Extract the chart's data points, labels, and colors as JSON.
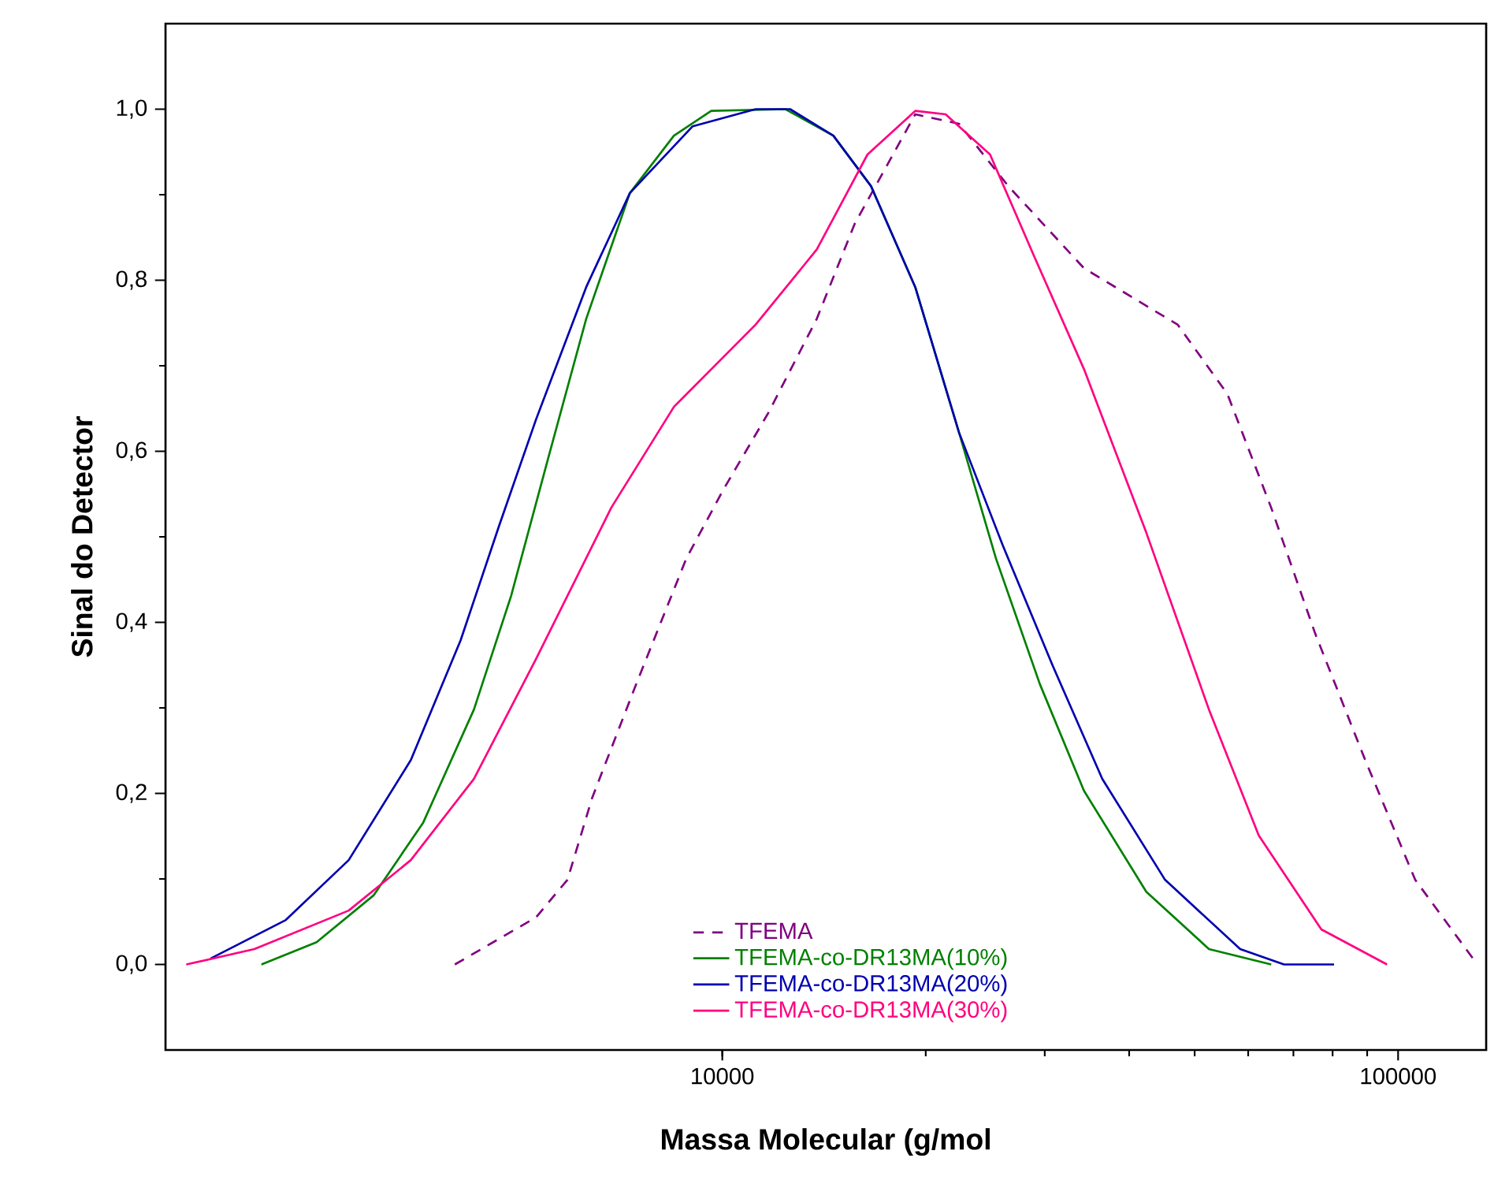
{
  "chart_data": {
    "type": "line",
    "xlabel": "Massa Molecular (g/mol",
    "ylabel": "Sinal do Detector",
    "log": "x",
    "xlim": [
      1500,
      135000
    ],
    "ylim": [
      -0.1,
      1.1
    ],
    "xticks": [
      10000,
      100000
    ],
    "yticks": [
      {
        "value": 0,
        "label": "0,0"
      },
      {
        "value": 0.2,
        "label": "0,2"
      },
      {
        "value": 0.4,
        "label": "0,4"
      },
      {
        "value": 0.6,
        "label": "0,6"
      },
      {
        "value": 0.8,
        "label": "0,8"
      },
      {
        "value": 1.0,
        "label": "1,0"
      }
    ],
    "legend": "bottom",
    "grid": false,
    "marker": "none",
    "series": [
      {
        "name": "TFEMA",
        "color": "#800080",
        "line_style": "dashed",
        "x": [
          4020,
          5300,
          5900,
          6420,
          7460,
          8850,
          10050,
          11700,
          13800,
          15700,
          19300,
          22400,
          26500,
          34300,
          47200,
          55900,
          64900,
          75400,
          89400,
          106000,
          131000
        ],
        "values": [
          0,
          0.055,
          0.099,
          0.195,
          0.328,
          0.475,
          0.556,
          0.645,
          0.755,
          0.866,
          0.994,
          0.983,
          0.91,
          0.814,
          0.748,
          0.667,
          0.534,
          0.387,
          0.239,
          0.099,
          0
        ]
      },
      {
        "name": "TFEMA-co-DR13MA(10%)",
        "color": "#008000",
        "line_style": "solid",
        "x": [
          2080,
          2510,
          3050,
          3610,
          4290,
          4870,
          5530,
          6290,
          7300,
          8480,
          9630,
          12400,
          14600,
          16600,
          19300,
          22400,
          25400,
          29500,
          34300,
          42400,
          52500,
          64900
        ],
        "values": [
          0,
          0.026,
          0.081,
          0.166,
          0.298,
          0.431,
          0.593,
          0.755,
          0.902,
          0.969,
          0.998,
          1.0,
          0.969,
          0.91,
          0.792,
          0.622,
          0.475,
          0.328,
          0.203,
          0.085,
          0.018,
          0
        ]
      },
      {
        "name": "TFEMA-co-DR13MA(20%)",
        "color": "#0000b0",
        "line_style": "solid",
        "x": [
          1750,
          2260,
          2800,
          3460,
          4100,
          4670,
          5300,
          6290,
          7300,
          9040,
          11200,
          12600,
          14600,
          16600,
          19300,
          22400,
          26000,
          30800,
          36500,
          45200,
          58400,
          67800,
          80400
        ],
        "values": [
          0.007,
          0.052,
          0.122,
          0.239,
          0.379,
          0.512,
          0.637,
          0.792,
          0.902,
          0.98,
          1.0,
          1.0,
          0.969,
          0.91,
          0.792,
          0.622,
          0.49,
          0.35,
          0.217,
          0.099,
          0.018,
          0,
          0
        ]
      },
      {
        "name": "TFEMA-co-DR13MA(30%)",
        "color": "#ff0080",
        "line_style": "solid",
        "x": [
          1610,
          2030,
          2800,
          3460,
          4290,
          5300,
          6850,
          8480,
          11200,
          13800,
          16400,
          19300,
          21400,
          24900,
          28900,
          34300,
          42400,
          52500,
          62200,
          77000,
          96300
        ],
        "values": [
          0,
          0.018,
          0.063,
          0.122,
          0.217,
          0.357,
          0.534,
          0.652,
          0.748,
          0.836,
          0.947,
          0.998,
          0.994,
          0.947,
          0.829,
          0.696,
          0.505,
          0.298,
          0.151,
          0.041,
          0
        ]
      }
    ]
  }
}
